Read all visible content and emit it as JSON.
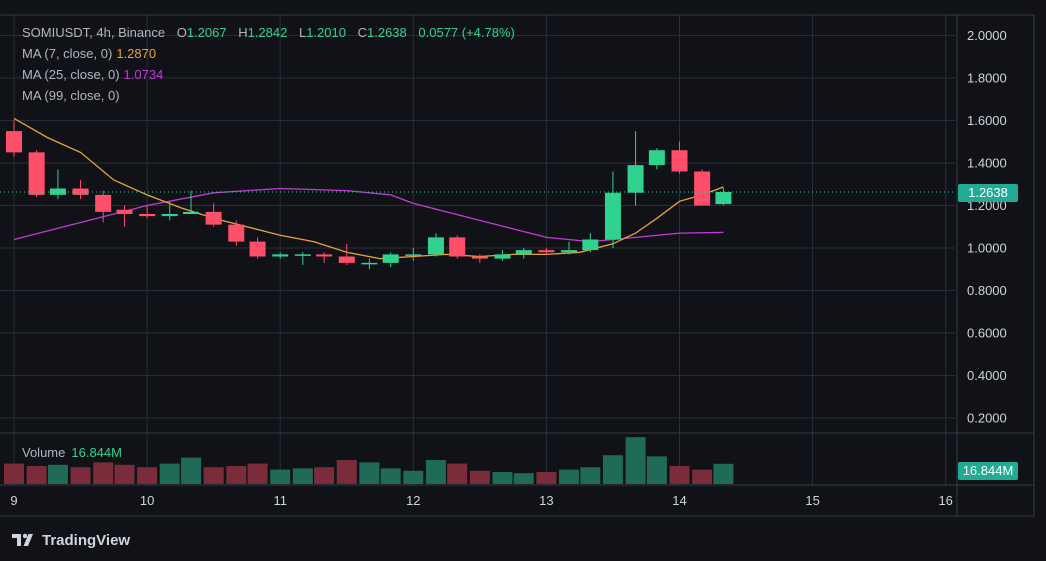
{
  "colors": {
    "background": "#111218",
    "grid": "#2a2e39",
    "up": "#26a69a",
    "up_bright": "#2fd38f",
    "down": "#f23645",
    "down_bright": "#ff4f6a",
    "ma7": "#e8a33a",
    "ma25": "#c13cd6",
    "axis_text": "#d1d4dc",
    "legend_text": "#b2b5be"
  },
  "legend": {
    "symbol": "SOMIUSDT",
    "interval": "4h",
    "exchange": "Binance",
    "header": "SOMIUSDT, 4h, Binance",
    "open_label": "O",
    "open": "1.2067",
    "high_label": "H",
    "high": "1.2842",
    "low_label": "L",
    "low": "1.2010",
    "close_label": "C",
    "close": "1.2638",
    "change": "0.0577 (+4.78%)",
    "ma7_label": "MA (7, close, 0)",
    "ma7_value": "1.2870",
    "ma25_label": "MA (25, close, 0)",
    "ma25_value": "1.0734",
    "ma99_label": "MA (99, close, 0)"
  },
  "volume_legend": {
    "label": "Volume",
    "value": "16.844M"
  },
  "price_badge": "1.2638",
  "volume_badge": "16.844M",
  "brand": {
    "name": "TradingView",
    "logo_icon": "tradingview-logo-icon"
  },
  "chart_data": {
    "type": "candlestick",
    "title": "SOMIUSDT, 4h, Binance",
    "ylim": [
      0.1,
      2.05
    ],
    "y_ticks": [
      "0.2000",
      "0.4000",
      "0.6000",
      "0.8000",
      "1.0000",
      "1.2000",
      "1.4000",
      "1.6000",
      "1.8000",
      "2.0000"
    ],
    "y_tick_values": [
      0.2,
      0.4,
      0.6,
      0.8,
      1.0,
      1.2,
      1.4,
      1.6,
      1.8,
      2.0
    ],
    "x_ticks": [
      "9",
      "10",
      "11",
      "12",
      "13",
      "14",
      "15",
      "16"
    ],
    "x_tick_days": [
      9,
      10,
      11,
      12,
      13,
      14,
      15,
      16
    ],
    "grid": true,
    "last_price": 1.2638,
    "volume_max_millions": 40,
    "candles": [
      {
        "t": 9.0,
        "o": 1.55,
        "h": 1.6,
        "l": 1.43,
        "c": 1.45,
        "v": 17
      },
      {
        "t": 9.17,
        "o": 1.45,
        "h": 1.46,
        "l": 1.24,
        "c": 1.25,
        "v": 15
      },
      {
        "t": 9.33,
        "o": 1.25,
        "h": 1.37,
        "l": 1.23,
        "c": 1.28,
        "v": 16
      },
      {
        "t": 9.5,
        "o": 1.28,
        "h": 1.32,
        "l": 1.23,
        "c": 1.25,
        "v": 14
      },
      {
        "t": 9.67,
        "o": 1.25,
        "h": 1.27,
        "l": 1.12,
        "c": 1.17,
        "v": 18
      },
      {
        "t": 9.83,
        "o": 1.18,
        "h": 1.2,
        "l": 1.1,
        "c": 1.16,
        "v": 16
      },
      {
        "t": 10.0,
        "o": 1.16,
        "h": 1.2,
        "l": 1.14,
        "c": 1.15,
        "v": 14
      },
      {
        "t": 10.17,
        "o": 1.15,
        "h": 1.22,
        "l": 1.13,
        "c": 1.16,
        "v": 17
      },
      {
        "t": 10.33,
        "o": 1.16,
        "h": 1.27,
        "l": 1.16,
        "c": 1.17,
        "v": 22
      },
      {
        "t": 10.5,
        "o": 1.17,
        "h": 1.21,
        "l": 1.1,
        "c": 1.11,
        "v": 14
      },
      {
        "t": 10.67,
        "o": 1.11,
        "h": 1.13,
        "l": 1.01,
        "c": 1.03,
        "v": 15
      },
      {
        "t": 10.83,
        "o": 1.03,
        "h": 1.05,
        "l": 0.95,
        "c": 0.96,
        "v": 17
      },
      {
        "t": 11.0,
        "o": 0.96,
        "h": 0.98,
        "l": 0.95,
        "c": 0.97,
        "v": 12
      },
      {
        "t": 11.17,
        "o": 0.97,
        "h": 0.98,
        "l": 0.92,
        "c": 0.97,
        "v": 13
      },
      {
        "t": 11.33,
        "o": 0.97,
        "h": 0.98,
        "l": 0.93,
        "c": 0.96,
        "v": 14
      },
      {
        "t": 11.5,
        "o": 0.96,
        "h": 1.02,
        "l": 0.92,
        "c": 0.93,
        "v": 20
      },
      {
        "t": 11.67,
        "o": 0.93,
        "h": 0.95,
        "l": 0.9,
        "c": 0.93,
        "v": 18
      },
      {
        "t": 11.83,
        "o": 0.93,
        "h": 0.98,
        "l": 0.91,
        "c": 0.97,
        "v": 13
      },
      {
        "t": 12.0,
        "o": 0.97,
        "h": 1.0,
        "l": 0.94,
        "c": 0.97,
        "v": 11
      },
      {
        "t": 12.17,
        "o": 0.97,
        "h": 1.07,
        "l": 0.96,
        "c": 1.05,
        "v": 20
      },
      {
        "t": 12.33,
        "o": 1.05,
        "h": 1.06,
        "l": 0.95,
        "c": 0.96,
        "v": 17
      },
      {
        "t": 12.5,
        "o": 0.96,
        "h": 0.97,
        "l": 0.93,
        "c": 0.95,
        "v": 11
      },
      {
        "t": 12.67,
        "o": 0.95,
        "h": 0.99,
        "l": 0.94,
        "c": 0.97,
        "v": 10
      },
      {
        "t": 12.83,
        "o": 0.97,
        "h": 1.0,
        "l": 0.95,
        "c": 0.99,
        "v": 9
      },
      {
        "t": 13.0,
        "o": 0.99,
        "h": 1.0,
        "l": 0.97,
        "c": 0.98,
        "v": 10
      },
      {
        "t": 13.17,
        "o": 0.98,
        "h": 1.03,
        "l": 0.97,
        "c": 0.99,
        "v": 12
      },
      {
        "t": 13.33,
        "o": 0.99,
        "h": 1.07,
        "l": 0.98,
        "c": 1.04,
        "v": 14
      },
      {
        "t": 13.5,
        "o": 1.04,
        "h": 1.36,
        "l": 1.0,
        "c": 1.26,
        "v": 24
      },
      {
        "t": 13.67,
        "o": 1.26,
        "h": 1.55,
        "l": 1.2,
        "c": 1.39,
        "v": 39
      },
      {
        "t": 13.83,
        "o": 1.39,
        "h": 1.47,
        "l": 1.37,
        "c": 1.46,
        "v": 23
      },
      {
        "t": 14.0,
        "o": 1.46,
        "h": 1.5,
        "l": 1.35,
        "c": 1.36,
        "v": 15
      },
      {
        "t": 14.17,
        "o": 1.36,
        "h": 1.37,
        "l": 1.2,
        "c": 1.2,
        "v": 12
      },
      {
        "t": 14.33,
        "o": 1.2067,
        "h": 1.2842,
        "l": 1.201,
        "c": 1.2638,
        "v": 16.844
      }
    ],
    "ma7": [
      [
        9.0,
        1.61
      ],
      [
        9.25,
        1.52
      ],
      [
        9.5,
        1.45
      ],
      [
        9.75,
        1.32
      ],
      [
        10.0,
        1.25
      ],
      [
        10.25,
        1.19
      ],
      [
        10.5,
        1.14
      ],
      [
        10.75,
        1.1
      ],
      [
        11.0,
        1.06
      ],
      [
        11.25,
        1.03
      ],
      [
        11.5,
        0.98
      ],
      [
        11.75,
        0.95
      ],
      [
        12.0,
        0.96
      ],
      [
        12.25,
        0.97
      ],
      [
        12.5,
        0.96
      ],
      [
        12.75,
        0.97
      ],
      [
        13.0,
        0.97
      ],
      [
        13.25,
        0.98
      ],
      [
        13.5,
        1.02
      ],
      [
        13.67,
        1.07
      ],
      [
        13.83,
        1.14
      ],
      [
        14.0,
        1.22
      ],
      [
        14.17,
        1.25
      ],
      [
        14.33,
        1.287
      ]
    ],
    "ma25": [
      [
        9.0,
        1.04
      ],
      [
        9.5,
        1.12
      ],
      [
        10.0,
        1.2
      ],
      [
        10.5,
        1.26
      ],
      [
        11.0,
        1.28
      ],
      [
        11.5,
        1.27
      ],
      [
        11.83,
        1.25
      ],
      [
        12.0,
        1.21
      ],
      [
        12.5,
        1.13
      ],
      [
        13.0,
        1.05
      ],
      [
        13.33,
        1.03
      ],
      [
        13.67,
        1.05
      ],
      [
        14.0,
        1.07
      ],
      [
        14.33,
        1.0734
      ]
    ]
  }
}
